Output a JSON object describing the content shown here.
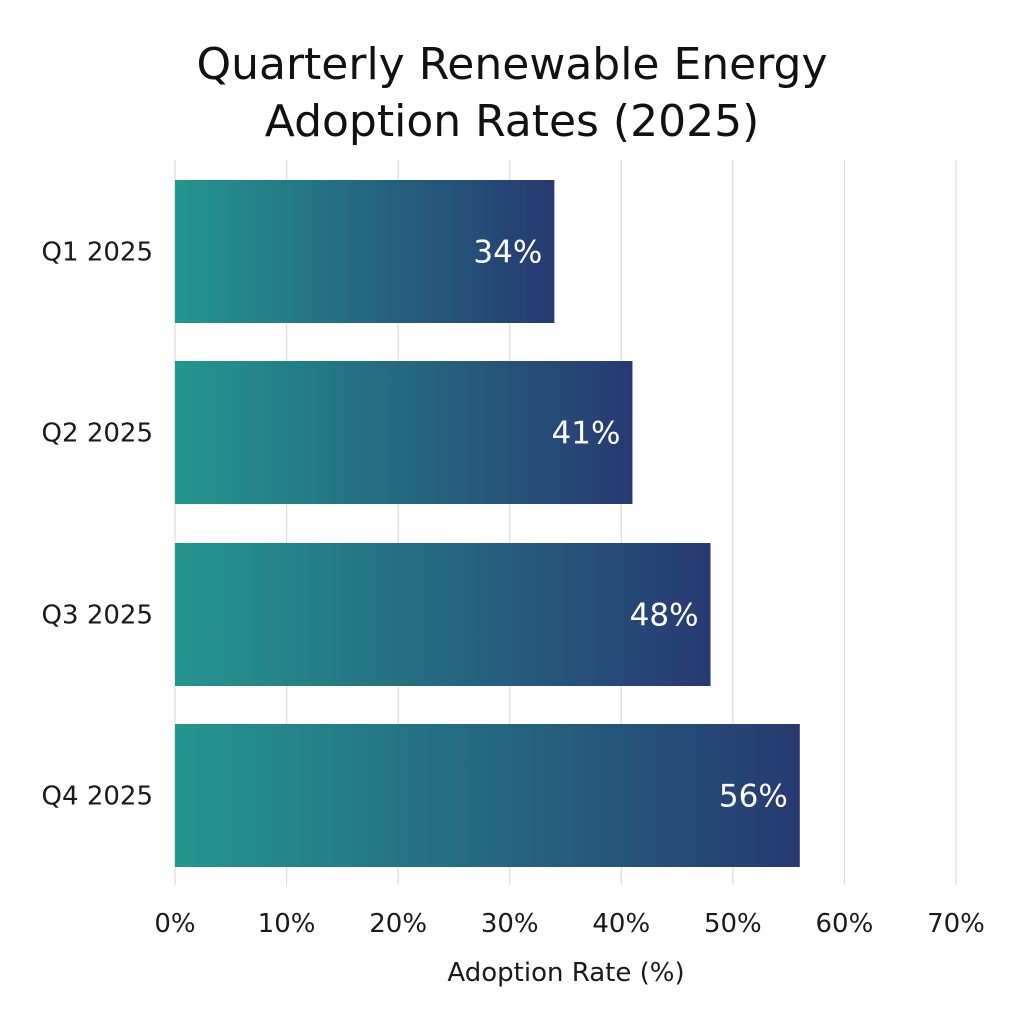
{
  "chart_data": {
    "type": "bar",
    "orientation": "horizontal",
    "title_lines": [
      "Quarterly Renewable Energy",
      "Adoption Rates (2025)"
    ],
    "xlabel": "Adoption Rate (%)",
    "ylabel": "",
    "categories": [
      "Q1 2025",
      "Q2 2025",
      "Q3 2025",
      "Q4 2025"
    ],
    "values": [
      34,
      41,
      48,
      56
    ],
    "value_labels": [
      "34%",
      "41%",
      "48%",
      "56%"
    ],
    "xlim": [
      0,
      70
    ],
    "x_ticks": [
      0,
      10,
      20,
      30,
      40,
      50,
      60,
      70
    ],
    "x_tick_labels": [
      "0%",
      "10%",
      "20%",
      "30%",
      "40%",
      "50%",
      "60%",
      "70%"
    ],
    "grid": "vertical",
    "colors": {
      "bar_gradient_start": "#23968f",
      "bar_gradient_end": "#273a72",
      "grid": "#dcdcdc",
      "text": "#1a1a1a",
      "bar_label": "#ffffff"
    }
  }
}
